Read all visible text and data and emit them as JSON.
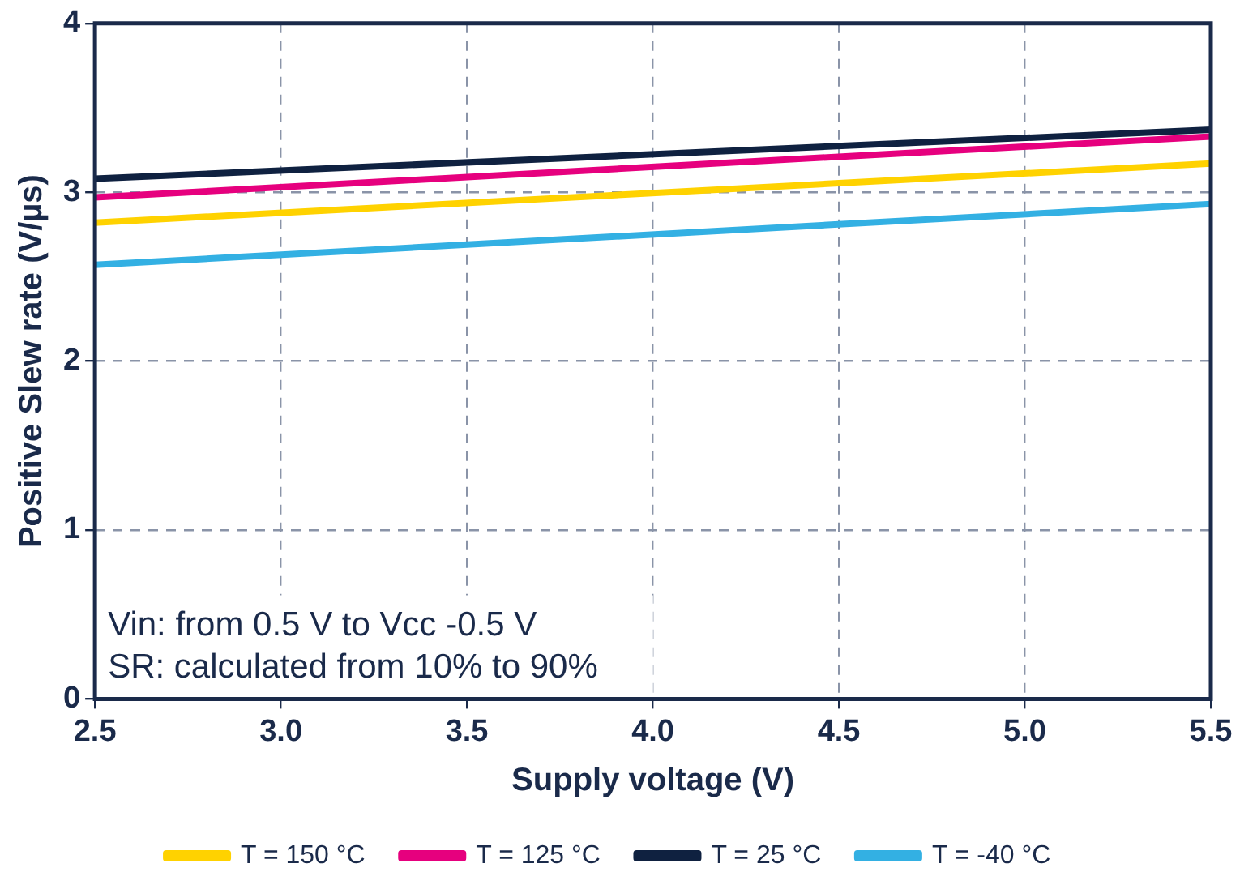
{
  "chart_data": {
    "type": "line",
    "xlabel": "Supply voltage (V)",
    "ylabel": "Positive Slew rate (V/µs)",
    "x": [
      2.5,
      5.5
    ],
    "series": [
      {
        "name": "T = 150 °C",
        "color": "#ffd200",
        "values": [
          2.82,
          3.17
        ]
      },
      {
        "name": "T = 125 °C",
        "color": "#e6007e",
        "values": [
          2.97,
          3.33
        ]
      },
      {
        "name": "T = 25 °C",
        "color": "#0f2140",
        "values": [
          3.08,
          3.37
        ]
      },
      {
        "name": "T = -40 °C",
        "color": "#33b0e3",
        "values": [
          2.57,
          2.93
        ]
      }
    ],
    "xlim": [
      2.5,
      5.5
    ],
    "xticks": [
      2.5,
      {
        "value": 3,
        "label": "3.0"
      },
      3.5,
      {
        "value": 4,
        "label": "4.0"
      },
      4.5,
      {
        "value": 5,
        "label": "5.0"
      },
      5.5
    ],
    "ylim": [
      0,
      4
    ],
    "yticks": [
      0,
      1,
      2,
      3,
      4
    ],
    "grid": true,
    "legend": "bottom",
    "marker": "none",
    "line_style": "solid",
    "annotations": [
      "Vin: from 0.5 V to Vcc -0.5 V",
      "SR: calculated from 10% to 90%"
    ]
  }
}
